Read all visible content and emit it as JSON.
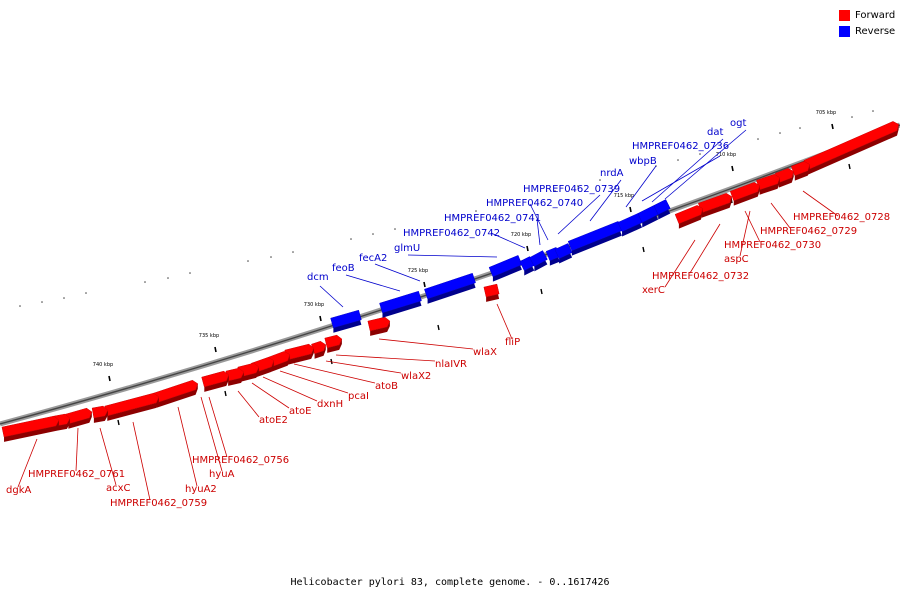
{
  "legend": {
    "forward_label": "Forward",
    "reverse_label": "Reverse",
    "forward_color": "#ff0000",
    "reverse_color": "#0000ff"
  },
  "caption": "Helicobacter pylori 83, complete genome. - 0..1617426",
  "scale": {
    "ticks": [
      "705 kbp",
      "710 kbp",
      "715 kbp",
      "720 kbp",
      "725 kbp",
      "730 kbp",
      "735 kbp",
      "740 kbp"
    ]
  },
  "genes": {
    "forward": [
      "HMPREF0462_0728",
      "HMPREF0462_0729",
      "HMPREF0462_0730",
      "aspC",
      "HMPREF0462_0732",
      "xerC",
      "fliP",
      "wlaX",
      "nlaIVR",
      "wlaX2",
      "atoB",
      "pcaI",
      "dxnH",
      "atoE",
      "atoE2",
      "HMPREF0462_0756",
      "hyuA",
      "hyuA2",
      "HMPREF0462_0759",
      "acxC",
      "HMPREF0462_0761",
      "dgkA"
    ],
    "reverse": [
      "ogt",
      "dat",
      "HMPREF0462_0736",
      "wbpB",
      "nrdA",
      "HMPREF0462_0739",
      "HMPREF0462_0740",
      "HMPREF0462_0741",
      "HMPREF0462_0742",
      "glmU",
      "fecA2",
      "feoB",
      "dcm"
    ]
  }
}
